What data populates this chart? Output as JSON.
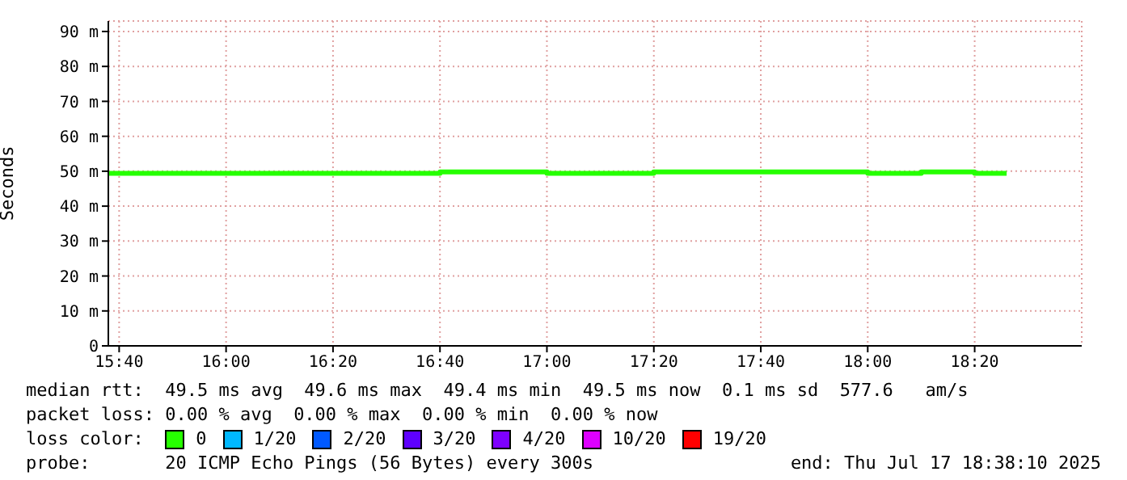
{
  "chart_data": {
    "type": "step",
    "ylabel": "Seconds",
    "legend_title": "loss color:",
    "legend": "bottom",
    "grid": true,
    "line_style": "solid",
    "marker": "none",
    "x": [
      15.633,
      16.667,
      17.0,
      17.333,
      18.0,
      18.167,
      18.333,
      18.433
    ],
    "xlim": [
      15.633,
      18.667
    ],
    "xticks": [
      {
        "value": 15.6667,
        "label": "15:40"
      },
      {
        "value": 16.0,
        "label": "16:00"
      },
      {
        "value": 16.3333,
        "label": "16:20"
      },
      {
        "value": 16.6667,
        "label": "16:40"
      },
      {
        "value": 17.0,
        "label": "17:00"
      },
      {
        "value": 17.3333,
        "label": "17:20"
      },
      {
        "value": 17.6667,
        "label": "17:40"
      },
      {
        "value": 18.0,
        "label": "18:00"
      },
      {
        "value": 18.3333,
        "label": "18:20"
      }
    ],
    "ylim": [
      0,
      93
    ],
    "yticks": [
      0,
      {
        "value": 10,
        "label": "10 m"
      },
      {
        "value": 20,
        "label": "20 m"
      },
      {
        "value": 30,
        "label": "30 m"
      },
      {
        "value": 40,
        "label": "40 m"
      },
      {
        "value": 50,
        "label": "50 m"
      },
      {
        "value": 60,
        "label": "60 m"
      },
      {
        "value": 70,
        "label": "70 m"
      },
      {
        "value": 80,
        "label": "80 m"
      },
      {
        "value": 90,
        "label": "90 m"
      }
    ],
    "series": [
      {
        "name": "0",
        "color": "#26ff00",
        "values": [
          49.4,
          49.8,
          49.4,
          49.8,
          49.4,
          49.8,
          49.4,
          49.4
        ]
      },
      {
        "name": "1/20",
        "color": "#00b8ff",
        "values": [
          null,
          null,
          null,
          null,
          null,
          null,
          null,
          null
        ]
      },
      {
        "name": "2/20",
        "color": "#0059ff",
        "values": [
          null,
          null,
          null,
          null,
          null,
          null,
          null,
          null
        ]
      },
      {
        "name": "3/20",
        "color": "#5e00ff",
        "values": [
          null,
          null,
          null,
          null,
          null,
          null,
          null,
          null
        ]
      },
      {
        "name": "4/20",
        "color": "#7e00ff",
        "values": [
          null,
          null,
          null,
          null,
          null,
          null,
          null,
          null
        ]
      },
      {
        "name": "10/20",
        "color": "#dd00ff",
        "values": [
          null,
          null,
          null,
          null,
          null,
          null,
          null,
          null
        ]
      },
      {
        "name": "19/20",
        "color": "#ff0000",
        "values": [
          null,
          null,
          null,
          null,
          null,
          null,
          null,
          null
        ]
      }
    ],
    "annotations": [
      "median rtt:  49.5 ms avg  49.6 ms max  49.4 ms min  49.5 ms now  0.1 ms sd  577.6   am/s",
      "packet loss: 0.00 % avg  0.00 % max  0.00 % min  0.00 % now",
      "probe:       20 ICMP Echo Pings (56 Bytes) every 300s",
      "end: Thu Jul 17 18:38:10 2025"
    ]
  }
}
